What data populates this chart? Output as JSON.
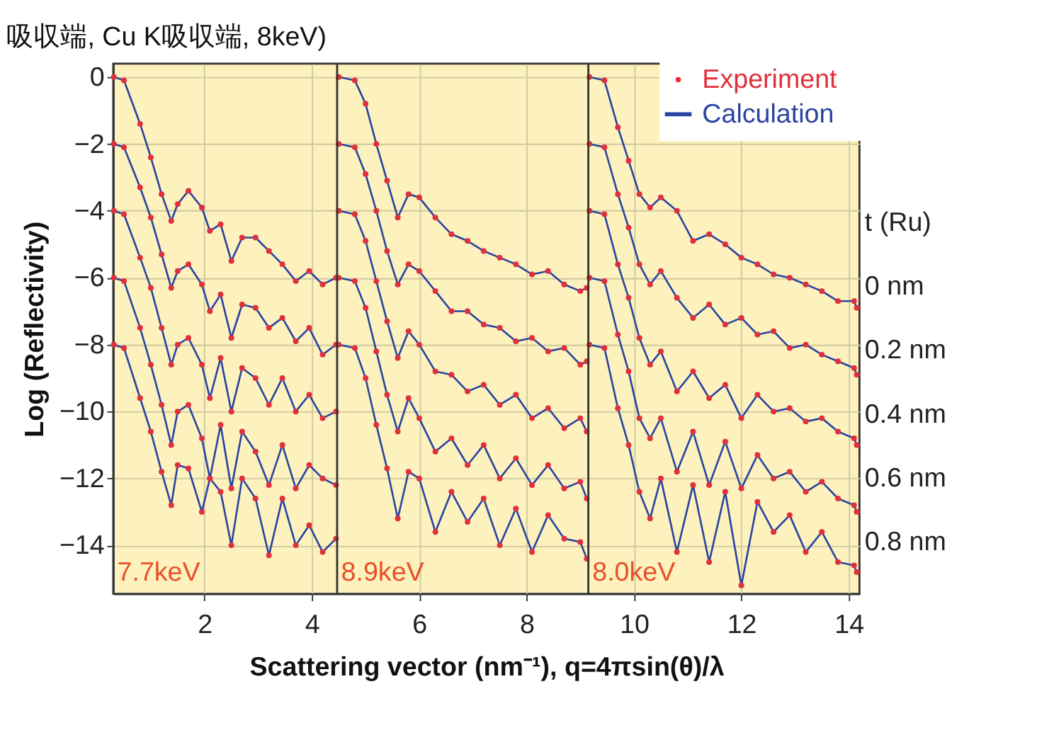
{
  "chart_data": {
    "type": "line",
    "title": "吸収端, Cu K吸収端, 8keV)",
    "xlabel": "Scattering vector (nm⁻¹),   q=4πsin(θ)/λ",
    "ylabel": "Log (Reflectivity)",
    "xlim": [
      0.3,
      14.2
    ],
    "ylim": [
      -15.45,
      0.4
    ],
    "xticks": [
      2,
      4,
      6,
      8,
      10,
      12,
      14
    ],
    "yticks": [
      0,
      -2,
      -4,
      -6,
      -8,
      -10,
      -12,
      -14
    ],
    "grid": true,
    "legend": "top right",
    "series": [
      {
        "name": "Experiment",
        "type": "scatter",
        "color": "#e0303c",
        "x": [
          0.31,
          0.5,
          0.8,
          1.0,
          1.2,
          1.38,
          1.5,
          1.7,
          1.95,
          2.1,
          2.3,
          2.5,
          2.7,
          2.95,
          3.2,
          3.45,
          3.7,
          3.95,
          4.2,
          4.45,
          0.31,
          0.5,
          0.8,
          1.0,
          1.2,
          1.38,
          1.5,
          1.7,
          1.95,
          2.1,
          2.3,
          2.5,
          2.7,
          2.95,
          3.2,
          3.45,
          3.7,
          3.95,
          4.2,
          4.45,
          0.31,
          0.5,
          0.8,
          1.0,
          1.2,
          1.38,
          1.5,
          1.7,
          1.95,
          2.1,
          2.3,
          2.5,
          2.7,
          2.95,
          3.2,
          3.45,
          3.7,
          3.95,
          4.2,
          4.45,
          0.31,
          0.5,
          0.8,
          1.0,
          1.2,
          1.38,
          1.5,
          1.7,
          1.95,
          2.1,
          2.3,
          2.5,
          2.7,
          2.95,
          3.2,
          3.45,
          3.7,
          3.95,
          4.2,
          4.45,
          0.31,
          0.5,
          0.8,
          1.0,
          1.2,
          1.38,
          1.5,
          1.7,
          1.95,
          2.1,
          2.3,
          2.5,
          2.7,
          2.95,
          3.2,
          3.45,
          3.7,
          3.95,
          4.2,
          4.45,
          4.5,
          4.8,
          5.0,
          5.2,
          5.4,
          5.6,
          5.8,
          6.0,
          6.3,
          6.6,
          6.9,
          7.2,
          7.5,
          7.8,
          8.1,
          8.4,
          8.7,
          9.0,
          9.12,
          4.5,
          4.8,
          5.0,
          5.2,
          5.4,
          5.6,
          5.8,
          6.0,
          6.3,
          6.6,
          6.9,
          7.2,
          7.5,
          7.8,
          8.1,
          8.4,
          8.7,
          9.0,
          9.12,
          4.5,
          4.8,
          5.0,
          5.2,
          5.4,
          5.6,
          5.8,
          6.0,
          6.3,
          6.6,
          6.9,
          7.2,
          7.5,
          7.8,
          8.1,
          8.4,
          8.7,
          9.0,
          9.12,
          4.5,
          4.8,
          5.0,
          5.2,
          5.4,
          5.6,
          5.8,
          6.0,
          6.3,
          6.6,
          6.9,
          7.2,
          7.5,
          7.8,
          8.1,
          8.4,
          8.7,
          9.0,
          9.12,
          4.5,
          4.8,
          5.0,
          5.2,
          5.4,
          5.6,
          5.8,
          6.0,
          6.3,
          6.6,
          6.9,
          7.2,
          7.5,
          7.8,
          8.1,
          8.4,
          8.7,
          9.0,
          9.12,
          9.17,
          9.45,
          9.7,
          9.9,
          10.1,
          10.3,
          10.5,
          10.8,
          11.1,
          11.4,
          11.7,
          12.0,
          12.3,
          12.6,
          12.9,
          13.2,
          13.5,
          13.8,
          14.1,
          14.15,
          9.17,
          9.45,
          9.7,
          9.9,
          10.1,
          10.3,
          10.5,
          10.8,
          11.1,
          11.4,
          11.7,
          12.0,
          12.3,
          12.6,
          12.9,
          13.2,
          13.5,
          13.8,
          14.1,
          14.15,
          9.17,
          9.45,
          9.7,
          9.9,
          10.1,
          10.3,
          10.5,
          10.8,
          11.1,
          11.4,
          11.7,
          12.0,
          12.3,
          12.6,
          12.9,
          13.2,
          13.5,
          13.8,
          14.1,
          14.15,
          9.17,
          9.45,
          9.7,
          9.9,
          10.1,
          10.3,
          10.5,
          10.8,
          11.1,
          11.4,
          11.7,
          12.0,
          12.3,
          12.6,
          12.9,
          13.2,
          13.5,
          13.8,
          14.1,
          14.15,
          9.17,
          9.45,
          9.7,
          9.9,
          10.1,
          10.3,
          10.5,
          10.8,
          11.1,
          11.4,
          11.7,
          12.0,
          12.3,
          12.6,
          12.9,
          13.2,
          13.5,
          13.8,
          14.1,
          14.15
        ],
        "values": [
          0,
          -0.1,
          -1.4,
          -2.4,
          -3.5,
          -4.3,
          -3.8,
          -3.4,
          -3.9,
          -4.6,
          -4.4,
          -5.5,
          -4.8,
          -4.8,
          -5.2,
          -5.6,
          -6.1,
          -5.8,
          -6.2,
          -6.0,
          -2,
          -2.1,
          -3.3,
          -4.2,
          -5.3,
          -6.3,
          -5.8,
          -5.6,
          -6.2,
          -7.0,
          -6.5,
          -7.8,
          -6.8,
          -6.9,
          -7.5,
          -7.2,
          -7.9,
          -7.5,
          -8.3,
          -8.0,
          -4,
          -4.1,
          -5.4,
          -6.3,
          -7.5,
          -8.6,
          -8.0,
          -7.8,
          -8.6,
          -9.6,
          -8.4,
          -10.0,
          -8.7,
          -9.0,
          -9.8,
          -9.0,
          -10.0,
          -9.5,
          -10.2,
          -10.0,
          -6,
          -6.1,
          -7.5,
          -8.6,
          -9.8,
          -11.0,
          -10.0,
          -9.8,
          -10.8,
          -12.0,
          -10.4,
          -12.3,
          -10.6,
          -11.2,
          -12.2,
          -11.0,
          -12.3,
          -11.6,
          -12.0,
          -12.2,
          -8,
          -8.1,
          -9.6,
          -10.6,
          -11.8,
          -12.8,
          -11.6,
          -11.7,
          -13.0,
          -12.0,
          -12.4,
          -14.0,
          -12.0,
          -12.6,
          -14.3,
          -12.6,
          -14.0,
          -13.4,
          -14.2,
          -13.8,
          0,
          -0.1,
          -0.8,
          -2.0,
          -3.1,
          -4.2,
          -3.5,
          -3.6,
          -4.2,
          -4.7,
          -4.9,
          -5.2,
          -5.4,
          -5.6,
          -5.9,
          -5.8,
          -6.2,
          -6.4,
          -6.3,
          -2,
          -2.1,
          -2.9,
          -4.0,
          -5.2,
          -6.2,
          -5.6,
          -5.8,
          -6.4,
          -7.0,
          -7.0,
          -7.4,
          -7.5,
          -7.9,
          -7.8,
          -8.2,
          -8.1,
          -8.6,
          -8.5,
          -4,
          -4.1,
          -4.9,
          -6.1,
          -7.3,
          -8.4,
          -7.6,
          -8.0,
          -8.8,
          -8.9,
          -9.4,
          -9.2,
          -9.8,
          -9.5,
          -10.2,
          -9.9,
          -10.5,
          -10.2,
          -10.6,
          -6,
          -6.1,
          -6.9,
          -8.2,
          -9.5,
          -10.6,
          -9.6,
          -10.2,
          -11.2,
          -10.8,
          -11.6,
          -11.0,
          -12.0,
          -11.4,
          -12.2,
          -11.6,
          -12.3,
          -12.1,
          -12.6,
          -8,
          -8.1,
          -9.0,
          -10.4,
          -11.7,
          -13.2,
          -11.8,
          -12.0,
          -13.6,
          -12.4,
          -13.3,
          -12.6,
          -14.0,
          -12.9,
          -14.2,
          -13.1,
          -13.8,
          -13.9,
          -14.4,
          0,
          -0.1,
          -1.5,
          -2.5,
          -3.5,
          -3.9,
          -3.6,
          -4.0,
          -4.9,
          -4.7,
          -5.0,
          -5.4,
          -5.6,
          -5.9,
          -6.0,
          -6.2,
          -6.4,
          -6.7,
          -6.7,
          -6.9,
          -2,
          -2.1,
          -3.5,
          -4.5,
          -5.6,
          -6.2,
          -5.8,
          -6.6,
          -7.2,
          -6.8,
          -7.4,
          -7.2,
          -7.7,
          -7.6,
          -8.1,
          -8.0,
          -8.3,
          -8.5,
          -8.7,
          -8.9,
          -4,
          -4.1,
          -5.6,
          -6.6,
          -7.8,
          -8.6,
          -8.2,
          -9.4,
          -8.8,
          -9.6,
          -9.2,
          -10.2,
          -9.5,
          -10.0,
          -9.9,
          -10.3,
          -10.2,
          -10.6,
          -10.8,
          -11.0,
          -6,
          -6.1,
          -7.7,
          -8.8,
          -10.2,
          -10.8,
          -10.2,
          -11.8,
          -10.6,
          -12.2,
          -10.9,
          -12.3,
          -11.3,
          -12.0,
          -11.8,
          -12.4,
          -12.1,
          -12.6,
          -12.8,
          -13.0,
          -8,
          -8.1,
          -9.9,
          -11.0,
          -12.4,
          -13.2,
          -12.0,
          -14.2,
          -12.2,
          -14.5,
          -12.4,
          -15.2,
          -12.7,
          -13.6,
          -13.1,
          -14.2,
          -13.6,
          -14.5,
          -14.6,
          -14.8
        ]
      },
      {
        "name": "Calculation",
        "color": "#2a44a0",
        "x": [
          0.31,
          0.5,
          0.8,
          1.0,
          1.2,
          1.38,
          1.5,
          1.7,
          1.95,
          2.1,
          2.3,
          2.5,
          2.7,
          2.95,
          3.2,
          3.45,
          3.7,
          3.95,
          4.2,
          4.45
        ],
        "values": [
          0,
          -0.1,
          -1.4,
          -2.4,
          -3.5,
          -4.3,
          -3.8,
          -3.4,
          -3.9,
          -4.6,
          -4.4,
          -5.5,
          -4.8,
          -4.8,
          -5.2,
          -5.6,
          -6.1,
          -5.8,
          -6.2,
          -6.0
        ]
      },
      {
        "color": "#2a44a0",
        "x": [
          0.31,
          0.5,
          0.8,
          1.0,
          1.2,
          1.38,
          1.5,
          1.7,
          1.95,
          2.1,
          2.3,
          2.5,
          2.7,
          2.95,
          3.2,
          3.45,
          3.7,
          3.95,
          4.2,
          4.45
        ],
        "values": [
          -2,
          -2.1,
          -3.3,
          -4.2,
          -5.3,
          -6.3,
          -5.8,
          -5.6,
          -6.2,
          -7.0,
          -6.5,
          -7.8,
          -6.8,
          -6.9,
          -7.5,
          -7.2,
          -7.9,
          -7.5,
          -8.3,
          -8.0
        ]
      },
      {
        "color": "#2a44a0",
        "x": [
          0.31,
          0.5,
          0.8,
          1.0,
          1.2,
          1.38,
          1.5,
          1.7,
          1.95,
          2.1,
          2.3,
          2.5,
          2.7,
          2.95,
          3.2,
          3.45,
          3.7,
          3.95,
          4.2,
          4.45
        ],
        "values": [
          -4,
          -4.1,
          -5.4,
          -6.3,
          -7.5,
          -8.6,
          -8.0,
          -7.8,
          -8.6,
          -9.6,
          -8.4,
          -10.0,
          -8.7,
          -9.0,
          -9.8,
          -9.0,
          -10.0,
          -9.5,
          -10.2,
          -10.0
        ]
      },
      {
        "color": "#2a44a0",
        "x": [
          0.31,
          0.5,
          0.8,
          1.0,
          1.2,
          1.38,
          1.5,
          1.7,
          1.95,
          2.1,
          2.3,
          2.5,
          2.7,
          2.95,
          3.2,
          3.45,
          3.7,
          3.95,
          4.2,
          4.45
        ],
        "values": [
          -6,
          -6.1,
          -7.5,
          -8.6,
          -9.8,
          -11.0,
          -10.0,
          -9.8,
          -10.8,
          -12.0,
          -10.4,
          -12.3,
          -10.6,
          -11.2,
          -12.2,
          -11.0,
          -12.3,
          -11.6,
          -12.0,
          -12.2
        ]
      },
      {
        "color": "#2a44a0",
        "x": [
          0.31,
          0.5,
          0.8,
          1.0,
          1.2,
          1.38,
          1.5,
          1.7,
          1.95,
          2.1,
          2.3,
          2.5,
          2.7,
          2.95,
          3.2,
          3.45,
          3.7,
          3.95,
          4.2,
          4.45
        ],
        "values": [
          -8,
          -8.1,
          -9.6,
          -10.6,
          -11.8,
          -12.8,
          -11.6,
          -11.7,
          -13.0,
          -12.0,
          -12.4,
          -14.0,
          -12.0,
          -12.6,
          -14.3,
          -12.6,
          -14.0,
          -13.4,
          -14.2,
          -13.8
        ]
      },
      {
        "color": "#2a44a0",
        "x": [
          4.5,
          4.8,
          5.0,
          5.2,
          5.4,
          5.6,
          5.8,
          6.0,
          6.3,
          6.6,
          6.9,
          7.2,
          7.5,
          7.8,
          8.1,
          8.4,
          8.7,
          9.0,
          9.12
        ],
        "values": [
          0,
          -0.1,
          -0.8,
          -2.0,
          -3.1,
          -4.2,
          -3.5,
          -3.6,
          -4.2,
          -4.7,
          -4.9,
          -5.2,
          -5.4,
          -5.6,
          -5.9,
          -5.8,
          -6.2,
          -6.4,
          -6.3
        ]
      },
      {
        "color": "#2a44a0",
        "x": [
          4.5,
          4.8,
          5.0,
          5.2,
          5.4,
          5.6,
          5.8,
          6.0,
          6.3,
          6.6,
          6.9,
          7.2,
          7.5,
          7.8,
          8.1,
          8.4,
          8.7,
          9.0,
          9.12
        ],
        "values": [
          -2,
          -2.1,
          -2.9,
          -4.0,
          -5.2,
          -6.2,
          -5.6,
          -5.8,
          -6.4,
          -7.0,
          -7.0,
          -7.4,
          -7.5,
          -7.9,
          -7.8,
          -8.2,
          -8.1,
          -8.6,
          -8.5
        ]
      },
      {
        "color": "#2a44a0",
        "x": [
          4.5,
          4.8,
          5.0,
          5.2,
          5.4,
          5.6,
          5.8,
          6.0,
          6.3,
          6.6,
          6.9,
          7.2,
          7.5,
          7.8,
          8.1,
          8.4,
          8.7,
          9.0,
          9.12
        ],
        "values": [
          -4,
          -4.1,
          -4.9,
          -6.1,
          -7.3,
          -8.4,
          -7.6,
          -8.0,
          -8.8,
          -8.9,
          -9.4,
          -9.2,
          -9.8,
          -9.5,
          -10.2,
          -9.9,
          -10.5,
          -10.2,
          -10.6
        ]
      },
      {
        "color": "#2a44a0",
        "x": [
          4.5,
          4.8,
          5.0,
          5.2,
          5.4,
          5.6,
          5.8,
          6.0,
          6.3,
          6.6,
          6.9,
          7.2,
          7.5,
          7.8,
          8.1,
          8.4,
          8.7,
          9.0,
          9.12
        ],
        "values": [
          -6,
          -6.1,
          -6.9,
          -8.2,
          -9.5,
          -10.6,
          -9.6,
          -10.2,
          -11.2,
          -10.8,
          -11.6,
          -11.0,
          -12.0,
          -11.4,
          -12.2,
          -11.6,
          -12.3,
          -12.1,
          -12.6
        ]
      },
      {
        "color": "#2a44a0",
        "x": [
          4.5,
          4.8,
          5.0,
          5.2,
          5.4,
          5.6,
          5.8,
          6.0,
          6.3,
          6.6,
          6.9,
          7.2,
          7.5,
          7.8,
          8.1,
          8.4,
          8.7,
          9.0,
          9.12
        ],
        "values": [
          -8,
          -8.1,
          -9.0,
          -10.4,
          -11.7,
          -13.2,
          -11.8,
          -12.0,
          -13.6,
          -12.4,
          -13.3,
          -12.6,
          -14.0,
          -12.9,
          -14.2,
          -13.1,
          -13.8,
          -13.9,
          -14.4
        ]
      },
      {
        "color": "#2a44a0",
        "x": [
          9.17,
          9.45,
          9.7,
          9.9,
          10.1,
          10.3,
          10.5,
          10.8,
          11.1,
          11.4,
          11.7,
          12.0,
          12.3,
          12.6,
          12.9,
          13.2,
          13.5,
          13.8,
          14.1,
          14.15
        ],
        "values": [
          0,
          -0.1,
          -1.5,
          -2.5,
          -3.5,
          -3.9,
          -3.6,
          -4.0,
          -4.9,
          -4.7,
          -5.0,
          -5.4,
          -5.6,
          -5.9,
          -6.0,
          -6.2,
          -6.4,
          -6.7,
          -6.7,
          -6.9
        ]
      },
      {
        "color": "#2a44a0",
        "x": [
          9.17,
          9.45,
          9.7,
          9.9,
          10.1,
          10.3,
          10.5,
          10.8,
          11.1,
          11.4,
          11.7,
          12.0,
          12.3,
          12.6,
          12.9,
          13.2,
          13.5,
          13.8,
          14.1,
          14.15
        ],
        "values": [
          -2,
          -2.1,
          -3.5,
          -4.5,
          -5.6,
          -6.2,
          -5.8,
          -6.6,
          -7.2,
          -6.8,
          -7.4,
          -7.2,
          -7.7,
          -7.6,
          -8.1,
          -8.0,
          -8.3,
          -8.5,
          -8.7,
          -8.9
        ]
      },
      {
        "color": "#2a44a0",
        "x": [
          9.17,
          9.45,
          9.7,
          9.9,
          10.1,
          10.3,
          10.5,
          10.8,
          11.1,
          11.4,
          11.7,
          12.0,
          12.3,
          12.6,
          12.9,
          13.2,
          13.5,
          13.8,
          14.1,
          14.15
        ],
        "values": [
          -4,
          -4.1,
          -5.6,
          -6.6,
          -7.8,
          -8.6,
          -8.2,
          -9.4,
          -8.8,
          -9.6,
          -9.2,
          -10.2,
          -9.5,
          -10.0,
          -9.9,
          -10.3,
          -10.2,
          -10.6,
          -10.8,
          -11.0
        ]
      },
      {
        "color": "#2a44a0",
        "x": [
          9.17,
          9.45,
          9.7,
          9.9,
          10.1,
          10.3,
          10.5,
          10.8,
          11.1,
          11.4,
          11.7,
          12.0,
          12.3,
          12.6,
          12.9,
          13.2,
          13.5,
          13.8,
          14.1,
          14.15
        ],
        "values": [
          -6,
          -6.1,
          -7.7,
          -8.8,
          -10.2,
          -10.8,
          -10.2,
          -11.8,
          -10.6,
          -12.2,
          -10.9,
          -12.3,
          -11.3,
          -12.0,
          -11.8,
          -12.4,
          -12.1,
          -12.6,
          -12.8,
          -13.0
        ]
      },
      {
        "color": "#2a44a0",
        "x": [
          9.17,
          9.45,
          9.7,
          9.9,
          10.1,
          10.3,
          10.5,
          10.8,
          11.1,
          11.4,
          11.7,
          12.0,
          12.3,
          12.6,
          12.9,
          13.2,
          13.5,
          13.8,
          14.1,
          14.15
        ],
        "values": [
          -8,
          -8.1,
          -9.9,
          -11.0,
          -12.4,
          -13.2,
          -12.0,
          -14.2,
          -12.2,
          -14.5,
          -12.4,
          -15.2,
          -12.7,
          -13.6,
          -13.1,
          -14.2,
          -13.6,
          -14.5,
          -14.6,
          -14.8
        ]
      }
    ],
    "ref_lines": [
      {
        "axis": "x",
        "value": 4.47,
        "color": "#333333"
      },
      {
        "axis": "x",
        "value": 9.15,
        "color": "#333333"
      }
    ],
    "annotations": [
      "7.7keV",
      "8.9keV",
      "8.0keV",
      "t (Ru)",
      "0 nm",
      "0.2 nm",
      "0.4 nm",
      "0.6 nm",
      "0.8 nm"
    ]
  }
}
